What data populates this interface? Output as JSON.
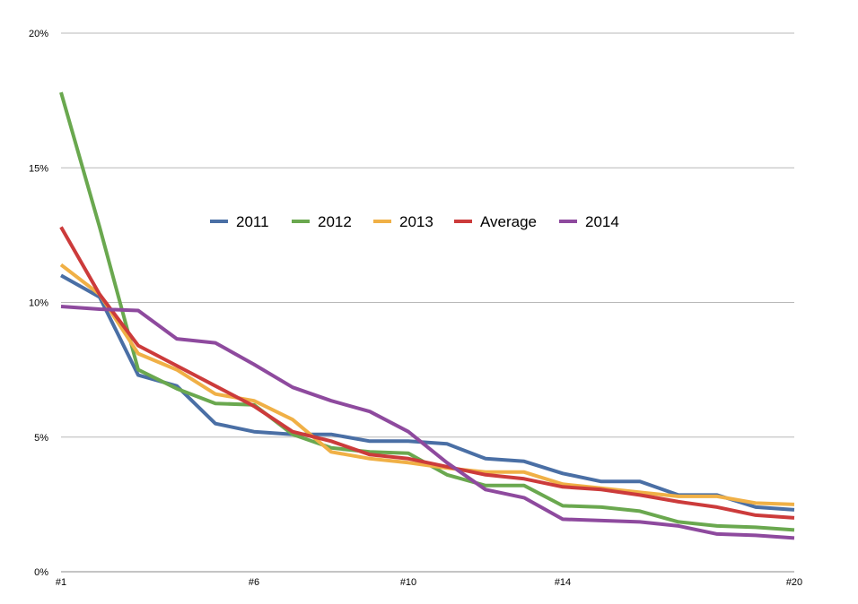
{
  "chart_data": {
    "type": "line",
    "title": "",
    "xlabel": "",
    "ylabel": "",
    "x": [
      "#1",
      "#2",
      "#3",
      "#4",
      "#5",
      "#6",
      "#7",
      "#8",
      "#9",
      "#10",
      "#11",
      "#12",
      "#13",
      "#14",
      "#15",
      "#16",
      "#17",
      "#18",
      "#19",
      "#20"
    ],
    "x_tick_labels": [
      "#1",
      "#6",
      "#10",
      "#14",
      "#20"
    ],
    "y_tick_labels": [
      "0%",
      "5%",
      "10%",
      "15%",
      "20%"
    ],
    "ylim": [
      0,
      20
    ],
    "grid": true,
    "legend_position": "center",
    "series": [
      {
        "name": "2011",
        "color": "#4a6fa5",
        "values": [
          11.0,
          10.2,
          7.3,
          6.9,
          5.5,
          5.2,
          5.1,
          5.1,
          4.85,
          4.85,
          4.75,
          4.2,
          4.1,
          3.65,
          3.35,
          3.35,
          2.85,
          2.85,
          2.4,
          2.3
        ]
      },
      {
        "name": "2012",
        "color": "#6aa84f",
        "values": [
          17.8,
          12.8,
          7.5,
          6.8,
          6.25,
          6.2,
          5.1,
          4.6,
          4.45,
          4.4,
          3.6,
          3.2,
          3.2,
          2.45,
          2.4,
          2.25,
          1.85,
          1.7,
          1.65,
          1.55
        ]
      },
      {
        "name": "2013",
        "color": "#f0b046",
        "values": [
          11.4,
          10.3,
          8.1,
          7.5,
          6.6,
          6.35,
          5.65,
          4.45,
          4.2,
          4.05,
          3.85,
          3.7,
          3.7,
          3.25,
          3.1,
          2.95,
          2.8,
          2.8,
          2.55,
          2.5
        ]
      },
      {
        "name": "Average",
        "color": "#cc3b3b",
        "values": [
          12.8,
          10.3,
          8.4,
          7.65,
          6.9,
          6.15,
          5.2,
          4.85,
          4.35,
          4.2,
          3.9,
          3.6,
          3.45,
          3.15,
          3.05,
          2.85,
          2.6,
          2.4,
          2.1,
          2.0
        ]
      },
      {
        "name": "2014",
        "color": "#8e4a9e",
        "values": [
          9.85,
          9.75,
          9.7,
          8.65,
          8.5,
          7.7,
          6.85,
          6.35,
          5.95,
          5.2,
          4.05,
          3.05,
          2.75,
          1.95,
          1.9,
          1.85,
          1.7,
          1.4,
          1.35,
          1.25
        ]
      }
    ]
  }
}
